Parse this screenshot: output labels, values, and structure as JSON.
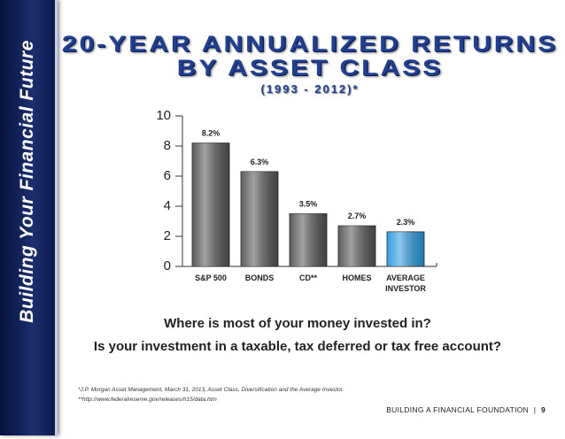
{
  "sidebar": {
    "text": "Building Your Financial Future"
  },
  "chart_data": {
    "type": "bar",
    "title": "20-YEAR ANNUALIZED RETURNS",
    "title_line2": "BY ASSET CLASS",
    "subtitle": "(1993 - 2012)*",
    "categories": [
      "S&P 500",
      "BONDS",
      "CD**",
      "HOMES",
      "AVERAGE INVESTOR"
    ],
    "values": [
      8.2,
      6.3,
      3.5,
      2.7,
      2.3
    ],
    "value_labels": [
      "8.2%",
      "6.3%",
      "3.5%",
      "2.7%",
      "2.3%"
    ],
    "colors": [
      "#555555",
      "#555555",
      "#555555",
      "#555555",
      "#2a9be0"
    ],
    "ylim": [
      0,
      10
    ],
    "yticks": [
      0,
      2,
      4,
      6,
      8,
      10
    ]
  },
  "questions": [
    "Where is most of your money invested in?",
    "Is your investment in a taxable, tax deferred or tax free account?"
  ],
  "footnotes": [
    "*J.P. Morgan Asset Management, March 31, 2013, Asset Class, Diversification and the Average Investor.",
    "**http://www.federalreserve.gov/releases/h15/data.htm"
  ],
  "footer": {
    "text": "BUILDING A FINANCIAL FOUNDATION",
    "separator": "|",
    "page": "9"
  }
}
